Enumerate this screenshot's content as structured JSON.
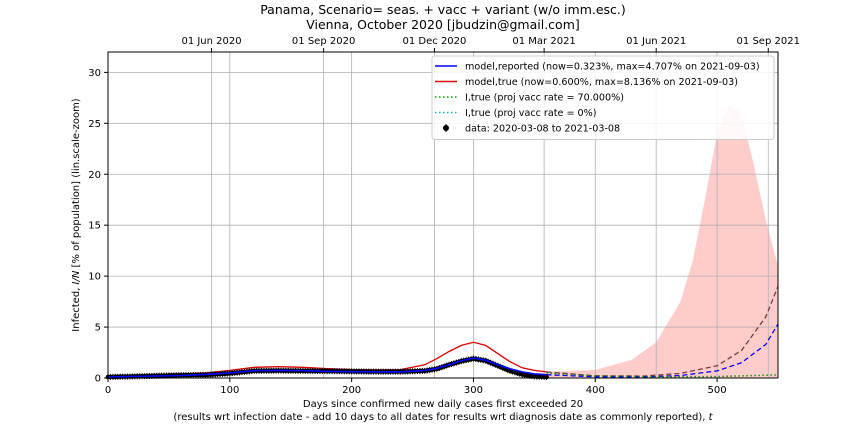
{
  "chart_data": {
    "type": "line",
    "title": "Panama, Scenario= seas. + vacc + variant (w/o imm.esc.)",
    "subtitle": "Vienna, October 2020 [jbudzin@gmail.com]",
    "xlabel": "Days since confirmed new daily cases first exceeded 20",
    "xlabel2_prefix": "(results wrt infection date - add 10 days to all dates for results wrt diagnosis date as commonly reported), ",
    "xlabel2_var": "t",
    "ylabel_prefix": "Infected, ",
    "ylabel_var": "I/N",
    "ylabel_suffix": " [% of population] (lin.scale-zoom)",
    "xlim": [
      0,
      550
    ],
    "ylim": [
      0,
      32
    ],
    "xticks": [
      0,
      100,
      200,
      300,
      400,
      500
    ],
    "yticks": [
      0,
      5,
      10,
      15,
      20,
      25,
      30
    ],
    "top_ticks": [
      {
        "day": 85,
        "label": "01 Jun 2020"
      },
      {
        "day": 177,
        "label": "01 Sep 2020"
      },
      {
        "day": 268,
        "label": "01 Dec 2020"
      },
      {
        "day": 358,
        "label": "01 Mar 2021"
      },
      {
        "day": 450,
        "label": "01 Jun 2021"
      },
      {
        "day": 542,
        "label": "01 Sep 2021"
      }
    ],
    "grid": true,
    "legend_position": "top-right",
    "series": [
      {
        "name": "model,reported (now=0.323%, max=4.707% on 2021-09-03)",
        "color": "#0000ff",
        "style": "solid",
        "x": [
          0,
          20,
          40,
          60,
          80,
          100,
          120,
          140,
          160,
          180,
          200,
          220,
          240,
          260,
          270,
          280,
          290,
          300,
          310,
          320,
          330,
          340,
          350,
          360
        ],
        "y": [
          0.1,
          0.15,
          0.2,
          0.25,
          0.35,
          0.5,
          0.72,
          0.75,
          0.72,
          0.65,
          0.62,
          0.6,
          0.6,
          0.75,
          0.95,
          1.3,
          1.7,
          1.95,
          1.75,
          1.3,
          0.9,
          0.6,
          0.4,
          0.32
        ]
      },
      {
        "name": "model,true (now=0.600%, max=8.136% on 2021-09-03)",
        "color": "#dd0000",
        "style": "solid",
        "x": [
          0,
          20,
          40,
          60,
          80,
          100,
          120,
          140,
          160,
          180,
          200,
          220,
          240,
          260,
          270,
          280,
          290,
          300,
          310,
          320,
          330,
          340,
          350,
          360
        ],
        "y": [
          0.15,
          0.22,
          0.3,
          0.38,
          0.5,
          0.75,
          1.05,
          1.12,
          1.05,
          0.92,
          0.82,
          0.8,
          0.82,
          1.3,
          1.9,
          2.6,
          3.2,
          3.5,
          3.2,
          2.4,
          1.6,
          1.0,
          0.75,
          0.6
        ]
      },
      {
        "name": "I,true (proj vacc rate = 70.000%)",
        "color": "#009900",
        "style": "dotted",
        "x": [
          360,
          400,
          450,
          500,
          550
        ],
        "y": [
          0.5,
          0.2,
          0.12,
          0.15,
          0.3
        ]
      },
      {
        "name": "I,true (proj vacc rate = 0%)",
        "color": "#00c0c0",
        "style": "dotted",
        "x": [],
        "y": []
      },
      {
        "name": "data: 2020-03-08 to 2021-03-08",
        "color": "#000000",
        "style": "markers",
        "x": [
          0,
          20,
          40,
          60,
          80,
          100,
          120,
          140,
          160,
          180,
          200,
          220,
          240,
          260,
          270,
          280,
          290,
          300,
          310,
          320,
          330,
          340,
          350,
          360
        ],
        "y": [
          0.1,
          0.15,
          0.22,
          0.28,
          0.3,
          0.45,
          0.7,
          0.72,
          0.7,
          0.68,
          0.65,
          0.62,
          0.62,
          0.7,
          0.9,
          1.3,
          1.65,
          1.9,
          1.7,
          1.2,
          0.7,
          0.35,
          0.15,
          0.1
        ]
      }
    ],
    "projection_reported": {
      "color": "#0000ff",
      "x": [
        360,
        400,
        440,
        470,
        500,
        520,
        540,
        550
      ],
      "y": [
        0.32,
        0.12,
        0.1,
        0.25,
        0.7,
        1.5,
        3.3,
        5.3
      ]
    },
    "projection_true": {
      "color": "#7a3a3a",
      "x": [
        360,
        400,
        440,
        470,
        500,
        520,
        540,
        550
      ],
      "y": [
        0.6,
        0.22,
        0.2,
        0.45,
        1.2,
        2.7,
        6.0,
        9.0
      ]
    },
    "band": {
      "color": "#ffcccc",
      "x": [
        360,
        400,
        430,
        450,
        470,
        480,
        490,
        500,
        510,
        520,
        530,
        540,
        550
      ],
      "y": [
        0.6,
        0.8,
        1.8,
        3.5,
        7.5,
        11.5,
        17.5,
        24.0,
        26.8,
        26.0,
        21.0,
        15.5,
        11.0
      ]
    }
  }
}
